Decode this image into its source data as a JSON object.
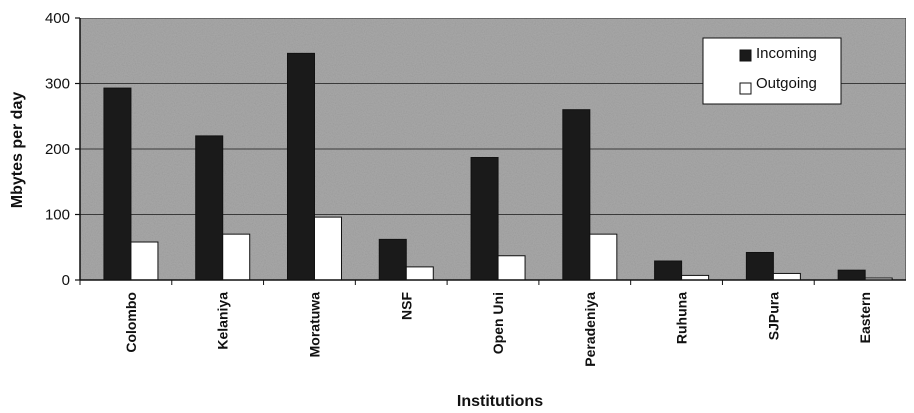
{
  "chart_data": {
    "type": "bar",
    "categories": [
      "Colombo",
      "Kelaniya",
      "Moratuwa",
      "NSF",
      "Open Uni",
      "Peradeniya",
      "Ruhuna",
      "SJPura",
      "Eastern"
    ],
    "series": [
      {
        "name": "Incoming",
        "values": [
          293,
          220,
          346,
          62,
          187,
          260,
          29,
          42,
          15
        ],
        "color": "#1a1a1a"
      },
      {
        "name": "Outgoing",
        "values": [
          58,
          70,
          96,
          20,
          37,
          70,
          7,
          10,
          3
        ],
        "color": "#ffffff"
      }
    ],
    "xlabel": "Institutions",
    "ylabel": "Mbytes per day",
    "ylim": [
      0,
      400
    ],
    "yticks": [
      "0",
      "100",
      "200",
      "300",
      "400"
    ],
    "grid": true,
    "legend": "top-right",
    "plot_background": "#a9a9a9"
  }
}
